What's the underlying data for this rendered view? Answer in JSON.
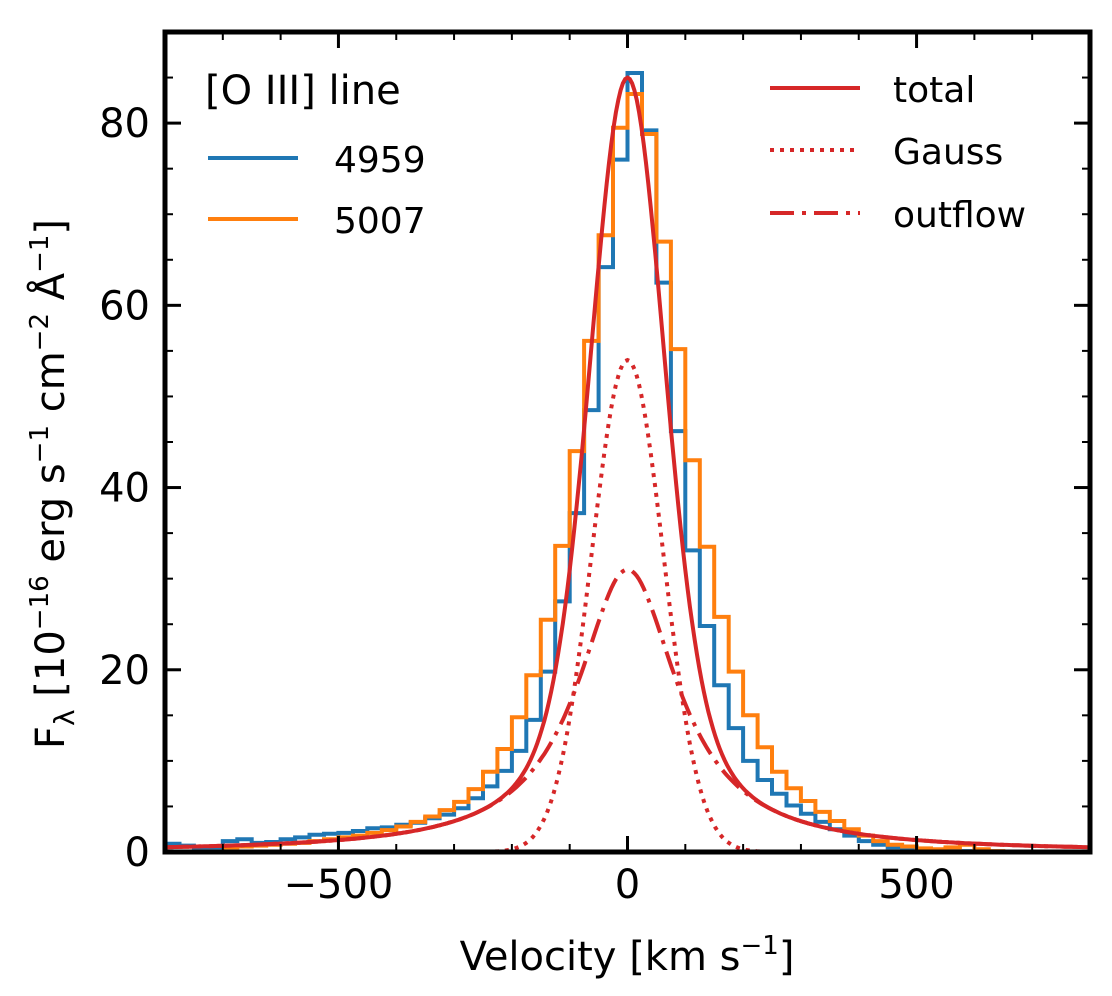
{
  "chart_data": {
    "type": "line",
    "xlabel_main": "Velocity [km s",
    "xlabel_sup": "−1",
    "xlabel_end": "]",
    "ylabel": {
      "F": "F",
      "lambda": "λ",
      "p1": " [10",
      "s1": "−16",
      "p2": " erg s",
      "s2": "−1",
      "p3": " cm",
      "s3": "−2",
      "p4": " Å",
      "s4": "−1",
      "p5": "]"
    },
    "xlim": [
      -800,
      800
    ],
    "ylim": [
      0,
      90
    ],
    "xticks": [
      -500,
      0,
      500
    ],
    "xtick_labels": [
      "−500",
      "0",
      "500"
    ],
    "yticks": [
      0,
      20,
      40,
      60,
      80
    ],
    "ytick_labels": [
      "0",
      "20",
      "40",
      "60",
      "80"
    ],
    "grid": false,
    "legend_left": {
      "title": "[O III] line",
      "placement": "top-left",
      "entries": [
        "4959",
        "5007"
      ]
    },
    "legend_right": {
      "placement": "top-right",
      "entries": [
        "total",
        "Gauss",
        "outflow"
      ]
    },
    "colors": {
      "s4959": "#1f77b4",
      "s5007": "#ff7f0e",
      "model": "#d62728"
    },
    "series": [
      {
        "name": "4959",
        "style": "steps",
        "x": [
          -800,
          -775,
          -750,
          -725,
          -700,
          -675,
          -650,
          -625,
          -600,
          -575,
          -550,
          -525,
          -500,
          -475,
          -450,
          -425,
          -400,
          -375,
          -350,
          -325,
          -300,
          -275,
          -250,
          -225,
          -200,
          -175,
          -150,
          -125,
          -100,
          -75,
          -50,
          -25,
          0,
          25,
          50,
          75,
          100,
          125,
          150,
          175,
          200,
          225,
          250,
          275,
          300,
          325,
          350,
          375,
          400,
          425,
          450,
          475,
          500,
          525,
          550,
          575,
          600,
          625,
          650,
          675,
          700,
          725,
          750,
          775
        ],
        "y": [
          0.9,
          0.7,
          0.5,
          0.5,
          1.2,
          1.4,
          1.0,
          1.1,
          1.4,
          1.6,
          1.9,
          2.0,
          2.1,
          2.3,
          2.6,
          2.7,
          3.0,
          3.2,
          3.7,
          4.1,
          4.8,
          5.9,
          7.2,
          8.9,
          11.1,
          14.5,
          19.8,
          27.5,
          37.2,
          48.5,
          64.2,
          76.0,
          85.5,
          79.2,
          62.5,
          46.2,
          33.1,
          24.8,
          18.3,
          13.6,
          10.0,
          7.9,
          6.4,
          5.1,
          4.2,
          3.3,
          2.5,
          1.8,
          1.2,
          0.8,
          0.5,
          0.3,
          0.2,
          0.2,
          0.1,
          0.1,
          0.1,
          0.0,
          0.0,
          0.0,
          0.0,
          0.0,
          0.0,
          0.0
        ]
      },
      {
        "name": "5007",
        "style": "steps",
        "x": [
          -700,
          -675,
          -650,
          -625,
          -600,
          -575,
          -550,
          -525,
          -500,
          -475,
          -450,
          -425,
          -400,
          -375,
          -350,
          -325,
          -300,
          -275,
          -250,
          -225,
          -200,
          -175,
          -150,
          -125,
          -100,
          -75,
          -50,
          -25,
          0,
          25,
          50,
          75,
          100,
          125,
          150,
          175,
          200,
          225,
          250,
          275,
          300,
          325,
          350,
          375,
          400,
          425,
          450,
          475,
          500,
          525,
          550,
          575,
          600,
          625,
          650,
          675,
          700
        ],
        "y": [
          0.5,
          0.6,
          0.7,
          0.8,
          0.9,
          1.0,
          1.2,
          1.4,
          1.6,
          1.8,
          2.1,
          2.4,
          2.8,
          3.3,
          3.9,
          4.6,
          5.5,
          6.9,
          8.8,
          11.3,
          14.8,
          19.4,
          25.5,
          33.6,
          44.0,
          56.1,
          67.7,
          79.5,
          83.2,
          78.8,
          67.0,
          55.2,
          43.0,
          33.5,
          25.8,
          19.8,
          15.0,
          11.5,
          8.8,
          7.0,
          5.6,
          4.4,
          3.4,
          2.5,
          1.8,
          1.2,
          0.8,
          0.6,
          0.4,
          0.3,
          0.5,
          0.8,
          0.3,
          0.1,
          0.0,
          0.0,
          0.0
        ]
      },
      {
        "name": "total",
        "style": "solid",
        "model": "total"
      },
      {
        "name": "Gauss",
        "style": "dotted",
        "model": "gauss"
      },
      {
        "name": "outflow",
        "style": "dashdot",
        "model": "outflow"
      }
    ],
    "model_params": {
      "gauss": {
        "amplitude": 54,
        "center": 0,
        "sigma": 62
      },
      "outflow": {
        "amplitude": 31,
        "center": 0,
        "hwhm": 105
      }
    }
  }
}
